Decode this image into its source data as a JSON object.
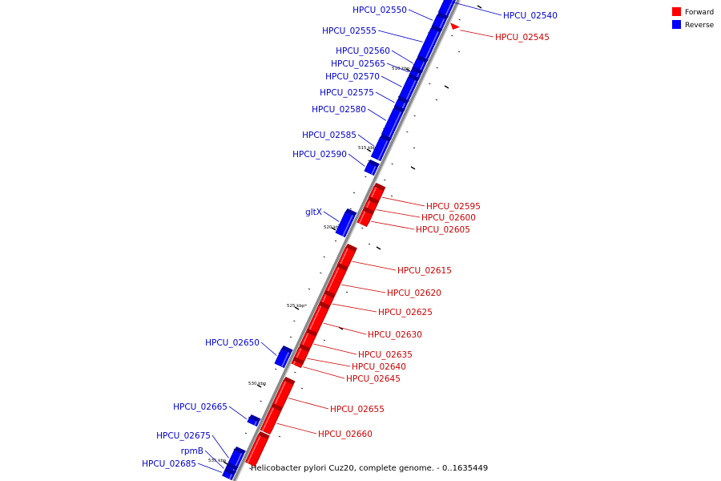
{
  "caption": "Helicobacter pylori Cuz20, complete genome. - 0..1635449",
  "legend": [
    {
      "label": "Forward",
      "color": "#ff0000"
    },
    {
      "label": "Reverse",
      "color": "#0000ff"
    }
  ],
  "colors": {
    "forward": "#ff0000",
    "forward_label": "#cc0000",
    "reverse": "#0000ff",
    "reverse_label": "#0000cc",
    "backbone": "#8a8a8a"
  },
  "ticks": [
    {
      "label": "510 kbp"
    },
    {
      "label": "515 kbp"
    },
    {
      "label": "520 kbp"
    },
    {
      "label": "525 kbp"
    },
    {
      "label": "530 kbp"
    },
    {
      "label": "535 kbp"
    }
  ],
  "genes": [
    {
      "name": "HPCU_02540",
      "strand": "reverse"
    },
    {
      "name": "HPCU_02545",
      "strand": "forward"
    },
    {
      "name": "HPCU_02550",
      "strand": "reverse"
    },
    {
      "name": "HPCU_02555",
      "strand": "reverse"
    },
    {
      "name": "HPCU_02560",
      "strand": "reverse"
    },
    {
      "name": "HPCU_02565",
      "strand": "reverse"
    },
    {
      "name": "HPCU_02570",
      "strand": "reverse"
    },
    {
      "name": "HPCU_02575",
      "strand": "reverse"
    },
    {
      "name": "HPCU_02580",
      "strand": "reverse"
    },
    {
      "name": "HPCU_02585",
      "strand": "reverse"
    },
    {
      "name": "HPCU_02590",
      "strand": "reverse"
    },
    {
      "name": "HPCU_02595",
      "strand": "forward"
    },
    {
      "name": "HPCU_02600",
      "strand": "forward"
    },
    {
      "name": "HPCU_02605",
      "strand": "forward"
    },
    {
      "name": "gltX",
      "strand": "reverse"
    },
    {
      "name": "HPCU_02615",
      "strand": "forward"
    },
    {
      "name": "HPCU_02620",
      "strand": "forward"
    },
    {
      "name": "HPCU_02625",
      "strand": "forward"
    },
    {
      "name": "HPCU_02630",
      "strand": "forward"
    },
    {
      "name": "HPCU_02635",
      "strand": "forward"
    },
    {
      "name": "HPCU_02640",
      "strand": "forward"
    },
    {
      "name": "HPCU_02645",
      "strand": "forward"
    },
    {
      "name": "HPCU_02650",
      "strand": "reverse"
    },
    {
      "name": "HPCU_02655",
      "strand": "forward"
    },
    {
      "name": "HPCU_02660",
      "strand": "forward"
    },
    {
      "name": "HPCU_02665",
      "strand": "reverse"
    },
    {
      "name": "HPCU_02675",
      "strand": "reverse"
    },
    {
      "name": "rpmB",
      "strand": "reverse"
    },
    {
      "name": "HPCU_02685",
      "strand": "reverse"
    }
  ]
}
